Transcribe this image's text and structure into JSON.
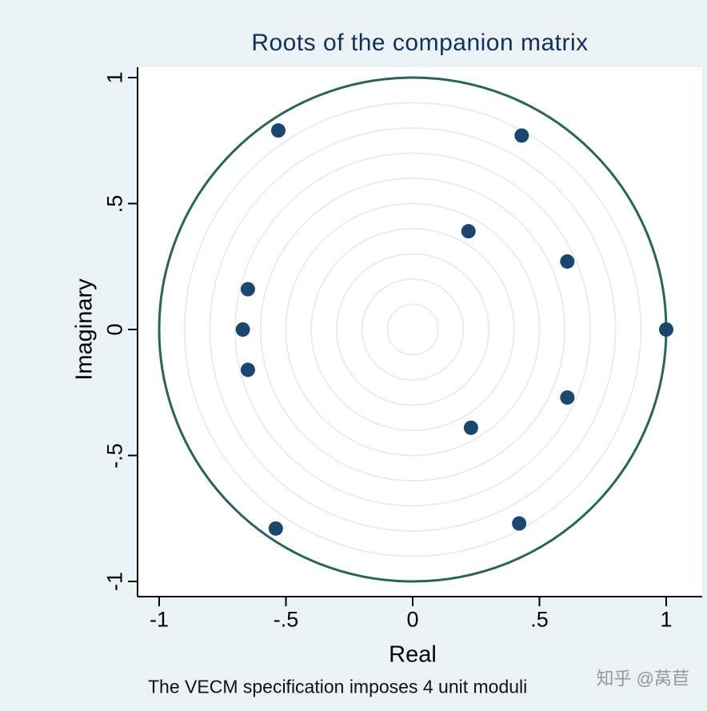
{
  "page": {
    "background": "#eaf2f5"
  },
  "chart_data": {
    "type": "scatter",
    "title": "Roots of the companion matrix",
    "xlabel": "Real",
    "ylabel": "Imaginary",
    "note": "The VECM specification imposes 4 unit moduli",
    "xlim": [
      -1,
      1
    ],
    "ylim": [
      -1,
      1
    ],
    "x_tick_labels": [
      "-1",
      "-.5",
      "0",
      ".5",
      "1"
    ],
    "x_tick_values": [
      -1,
      -0.5,
      0,
      0.5,
      1
    ],
    "y_tick_labels": [
      "1",
      ".5",
      "0",
      "-.5",
      "-1"
    ],
    "y_tick_values": [
      1,
      0.5,
      0,
      -0.5,
      -1
    ],
    "grid": "concentric-circles",
    "grid_radii": [
      0.1,
      0.2,
      0.3,
      0.4,
      0.5,
      0.6,
      0.7,
      0.8,
      0.9
    ],
    "unit_circle_radius": 1,
    "points": [
      {
        "real": -0.53,
        "imaginary": 0.79
      },
      {
        "real": 0.43,
        "imaginary": 0.77
      },
      {
        "real": 0.22,
        "imaginary": 0.39
      },
      {
        "real": 0.61,
        "imaginary": 0.27
      },
      {
        "real": -0.65,
        "imaginary": 0.16
      },
      {
        "real": -0.67,
        "imaginary": 0.0
      },
      {
        "real": -0.65,
        "imaginary": -0.16
      },
      {
        "real": 0.61,
        "imaginary": -0.27
      },
      {
        "real": 0.23,
        "imaginary": -0.39
      },
      {
        "real": 0.42,
        "imaginary": -0.77
      },
      {
        "real": -0.54,
        "imaginary": -0.79
      },
      {
        "real": 1.0,
        "imaginary": 0.0
      }
    ],
    "colors": {
      "point": "#1a476f",
      "unit_circle": "#2a635d",
      "grid_circle": "#e2eaec",
      "axis": "#000000",
      "title": "#13305c",
      "plot_background": "#ffffff"
    }
  },
  "watermark": {
    "text": "知乎 @莴苣"
  }
}
